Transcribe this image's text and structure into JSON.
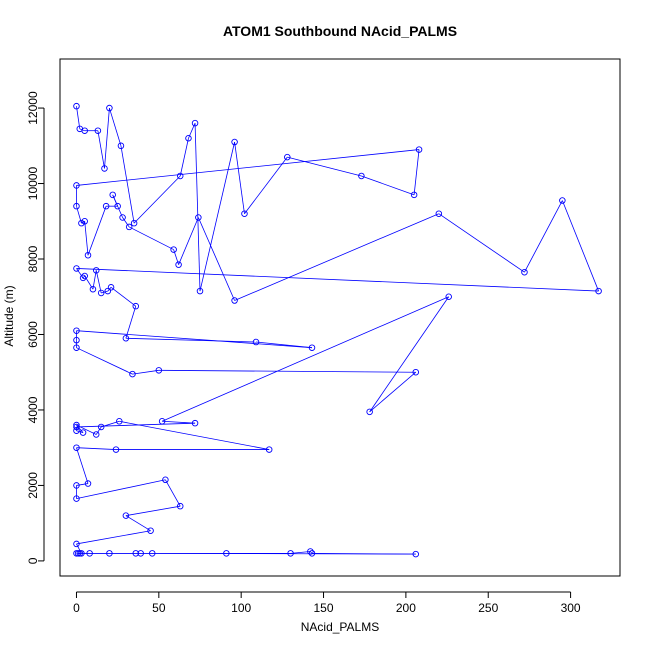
{
  "chart_data": {
    "type": "line",
    "title": "ATOM1 Southbound NAcid_PALMS",
    "xlabel": "NAcid_PALMS",
    "ylabel": "Altitude (m)",
    "xlim": [
      -10,
      330
    ],
    "ylim": [
      -400,
      13300
    ],
    "x_ticks": [
      0,
      50,
      100,
      150,
      200,
      250,
      300
    ],
    "y_ticks": [
      0,
      2000,
      4000,
      6000,
      8000,
      10000,
      12000
    ],
    "x_tick_labels": [
      "0",
      "50",
      "100",
      "150",
      "200",
      "250",
      "300"
    ],
    "y_tick_labels": [
      "0",
      "2000",
      "4000",
      "6000",
      "8000",
      "10000",
      "12000"
    ],
    "markers": "open-circle",
    "color": "#0000ff",
    "grid": false,
    "legend": "none",
    "series": [
      {
        "points": [
          [
            0,
            12050
          ],
          [
            2,
            11450
          ],
          [
            5,
            11400
          ],
          [
            13,
            11400
          ],
          [
            17,
            10400
          ],
          [
            20,
            12000
          ],
          [
            27,
            11000
          ],
          [
            35,
            8950
          ],
          [
            63,
            10200
          ],
          [
            68,
            11200
          ],
          [
            72,
            11600
          ],
          [
            75,
            7150
          ],
          [
            96,
            11100
          ],
          [
            102,
            9200
          ],
          [
            128,
            10700
          ],
          [
            173,
            10200
          ],
          [
            205,
            9700
          ],
          [
            208,
            10900
          ],
          [
            0,
            9950
          ],
          [
            0,
            9400
          ],
          [
            3,
            8950
          ],
          [
            5,
            9000
          ],
          [
            7,
            8100
          ],
          [
            18,
            9400
          ],
          [
            25,
            9400
          ],
          [
            22,
            9700
          ],
          [
            28,
            9100
          ],
          [
            32,
            8850
          ],
          [
            59,
            8250
          ],
          [
            62,
            7850
          ],
          [
            74,
            9100
          ],
          [
            96,
            6900
          ],
          [
            220,
            9200
          ],
          [
            272,
            7650
          ],
          [
            295,
            9550
          ],
          [
            317,
            7150
          ],
          [
            0,
            7750
          ],
          [
            4,
            7500
          ],
          [
            5,
            7550
          ],
          [
            10,
            7200
          ],
          [
            12,
            7700
          ],
          [
            15,
            7100
          ],
          [
            19,
            7150
          ],
          [
            21,
            7250
          ],
          [
            36,
            6750
          ],
          [
            30,
            5900
          ],
          [
            109,
            5800
          ],
          [
            143,
            5650
          ],
          [
            0,
            6100
          ],
          [
            0,
            5850
          ],
          [
            0,
            5650
          ],
          [
            34,
            4950
          ],
          [
            50,
            5050
          ],
          [
            206,
            5000
          ],
          [
            178,
            3950
          ],
          [
            226,
            7000
          ],
          [
            52,
            3700
          ],
          [
            72,
            3650
          ],
          [
            0,
            3550
          ],
          [
            0,
            3450
          ],
          [
            4,
            3400
          ],
          [
            0,
            3600
          ],
          [
            12,
            3350
          ],
          [
            15,
            3550
          ],
          [
            26,
            3700
          ],
          [
            117,
            2950
          ],
          [
            24,
            2950
          ],
          [
            0,
            3000
          ],
          [
            7,
            2050
          ],
          [
            0,
            2000
          ],
          [
            0,
            1650
          ],
          [
            54,
            2150
          ],
          [
            63,
            1450
          ],
          [
            30,
            1200
          ],
          [
            45,
            800
          ],
          [
            0,
            450
          ],
          [
            3,
            200
          ],
          [
            1,
            200
          ],
          [
            8,
            200
          ],
          [
            20,
            200
          ],
          [
            36,
            200
          ],
          [
            39,
            200
          ],
          [
            91,
            200
          ],
          [
            130,
            200
          ],
          [
            142,
            250
          ],
          [
            143,
            200
          ],
          [
            206,
            180
          ],
          [
            46,
            200
          ],
          [
            2,
            200
          ],
          [
            0,
            200
          ]
        ]
      }
    ]
  }
}
